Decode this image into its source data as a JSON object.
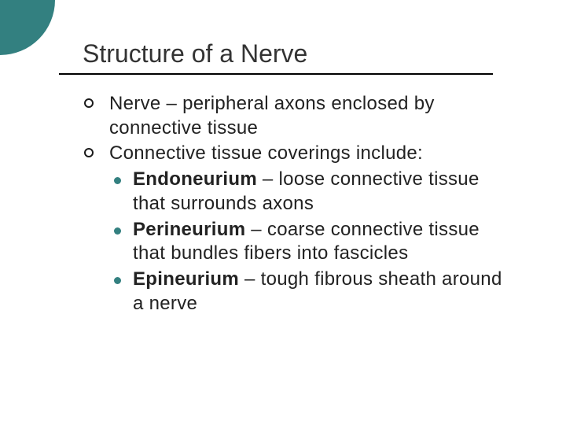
{
  "colors": {
    "accent": "#338080",
    "title": "#333333",
    "body_text": "#222222",
    "sub_bullet": "#338080",
    "underline": "#000000",
    "background": "#ffffff"
  },
  "fonts": {
    "title_family": "Arial",
    "body_family": "Verdana",
    "title_size_pt": 32,
    "body_size_pt": 24
  },
  "title": "Structure of a Nerve",
  "bullets": [
    {
      "text": "Nerve – peripheral axons enclosed by connective tissue"
    },
    {
      "text": "Connective tissue coverings include:",
      "children": [
        {
          "term": "Endoneurium",
          "def": " – loose connective tissue that surrounds axons"
        },
        {
          "term": "Perineurium",
          "def": " – coarse connective tissue  that bundles fibers into fascicles"
        },
        {
          "term": "Epineurium",
          "def": " – tough fibrous sheath around a nerve"
        }
      ]
    }
  ]
}
